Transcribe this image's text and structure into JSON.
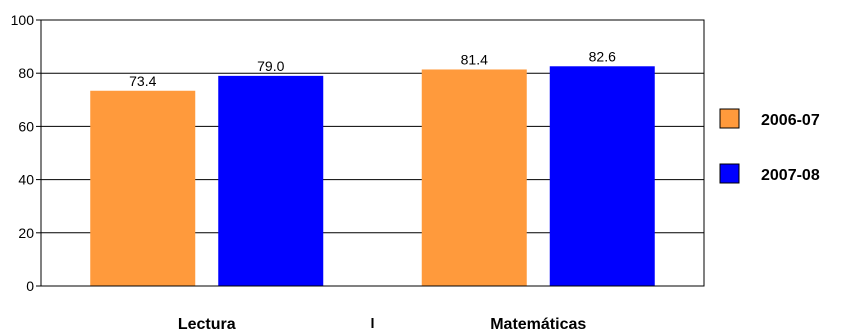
{
  "chart_data": {
    "type": "bar",
    "title": "",
    "xlabel": "",
    "ylabel": "",
    "categories": [
      "Lectura",
      "Matemáticas"
    ],
    "series": [
      {
        "name": "2006-07",
        "values": [
          73.4,
          81.4
        ],
        "labels": [
          "73.4",
          "81.4"
        ],
        "color": "#FF9A3C"
      },
      {
        "name": "2007-08",
        "values": [
          79.0,
          82.6
        ],
        "labels": [
          "79.0",
          "82.6"
        ],
        "color": "#0000FF"
      }
    ],
    "ylim": [
      0,
      100
    ],
    "yticks": [
      0,
      20,
      40,
      60,
      80,
      100
    ],
    "ytick_labels": [
      "0",
      "20",
      "40",
      "60",
      "80",
      "100"
    ],
    "grid": true,
    "legend_position": "right"
  }
}
